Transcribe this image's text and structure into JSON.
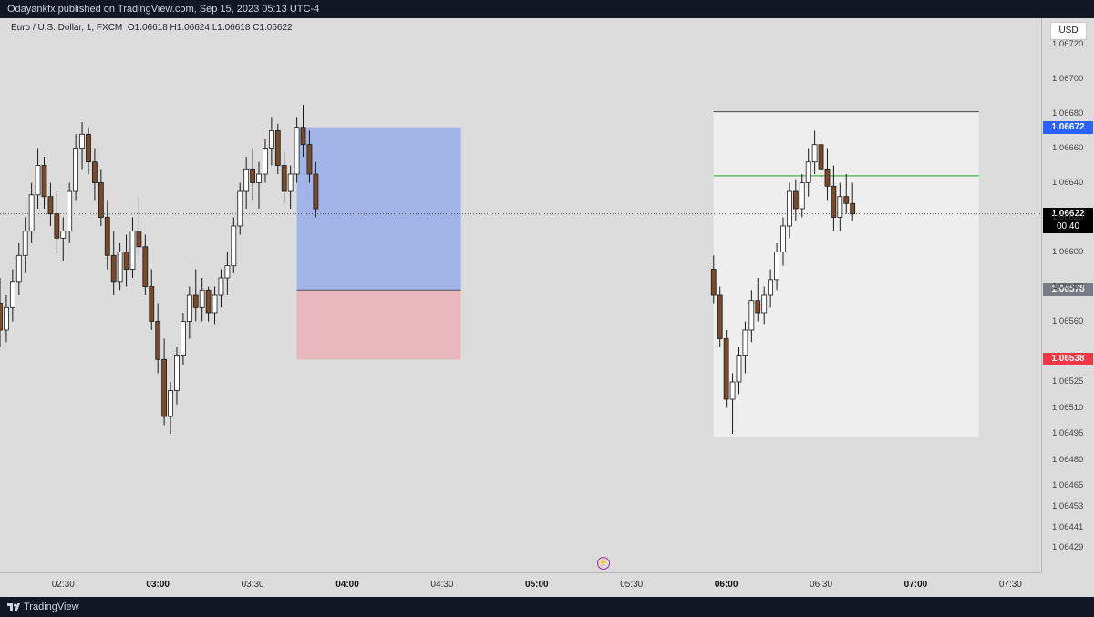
{
  "header": {
    "title": "Odayankfx published on TradingView.com, Sep 15, 2023 05:13 UTC-4"
  },
  "symbol": {
    "name": "Euro / U.S. Dollar, 1, FXCM",
    "open": "O1.06618",
    "high": "H1.06624",
    "low": "L1.06618",
    "close": "C1.06622"
  },
  "axis": {
    "currency": "USD",
    "price_ticks": [
      "1.06720",
      "1.06700",
      "1.06680",
      "1.06660",
      "1.06640",
      "1.06620",
      "1.06600",
      "1.06580",
      "1.06560",
      "1.06525",
      "1.06510",
      "1.06495",
      "1.06480",
      "1.06465",
      "1.06453",
      "1.06441",
      "1.06429"
    ],
    "time_ticks": [
      {
        "label": "02:30",
        "bold": false
      },
      {
        "label": "03:00",
        "bold": true
      },
      {
        "label": "03:30",
        "bold": false
      },
      {
        "label": "04:00",
        "bold": true
      },
      {
        "label": "04:30",
        "bold": false
      },
      {
        "label": "05:00",
        "bold": true
      },
      {
        "label": "05:30",
        "bold": false
      },
      {
        "label": "06:00",
        "bold": true
      },
      {
        "label": "06:30",
        "bold": false
      },
      {
        "label": "07:00",
        "bold": true
      },
      {
        "label": "07:30",
        "bold": false
      }
    ]
  },
  "price_tags": {
    "target": {
      "price": "1.06672",
      "color": "#2962ff"
    },
    "last": {
      "price": "1.06622",
      "countdown": "00:40",
      "color": "#000000"
    },
    "entry": {
      "price": "1.06578",
      "color": "#787b86"
    },
    "stop": {
      "price": "1.06538",
      "color": "#f23645"
    }
  },
  "colors": {
    "bull": "#ffffff",
    "bear": "#7a4a2a",
    "wick": "#1a1a1a",
    "profit_zone": "#8fa6ec",
    "loss_zone": "#eab2b8",
    "result_panel": "#eeeeee",
    "green_line": "#4caf50"
  },
  "footer": {
    "brand": "TradingView",
    "logo_icon": "tradingview-logo-icon"
  },
  "chart_data": {
    "type": "candlestick",
    "title": "Euro / U.S. Dollar, 1, FXCM",
    "xlabel": "",
    "ylabel": "",
    "ylim": [
      1.06415,
      1.06735
    ],
    "x_range": [
      "02:10",
      "07:40"
    ],
    "grid": false,
    "main_series": [
      [
        "02:10",
        1.0657,
        1.06585,
        1.06545,
        1.06555
      ],
      [
        "02:12",
        1.06555,
        1.06575,
        1.06548,
        1.06568
      ],
      [
        "02:14",
        1.06568,
        1.0659,
        1.0656,
        1.06583
      ],
      [
        "02:16",
        1.06583,
        1.06605,
        1.06575,
        1.06598
      ],
      [
        "02:18",
        1.06598,
        1.0662,
        1.06588,
        1.06612
      ],
      [
        "02:20",
        1.06612,
        1.0664,
        1.06605,
        1.06633
      ],
      [
        "02:22",
        1.06633,
        1.0666,
        1.06625,
        1.0665
      ],
      [
        "02:24",
        1.0665,
        1.06655,
        1.06625,
        1.06632
      ],
      [
        "02:26",
        1.06632,
        1.0664,
        1.06615,
        1.06622
      ],
      [
        "02:28",
        1.06622,
        1.06635,
        1.066,
        1.06608
      ],
      [
        "02:30",
        1.06608,
        1.0662,
        1.06595,
        1.06612
      ],
      [
        "02:32",
        1.06612,
        1.0664,
        1.06605,
        1.06635
      ],
      [
        "02:34",
        1.06635,
        1.06668,
        1.0663,
        1.0666
      ],
      [
        "02:36",
        1.0666,
        1.06675,
        1.06648,
        1.06668
      ],
      [
        "02:38",
        1.06668,
        1.06672,
        1.06645,
        1.06652
      ],
      [
        "02:40",
        1.06652,
        1.0666,
        1.0663,
        1.0664
      ],
      [
        "02:42",
        1.0664,
        1.06648,
        1.06615,
        1.0662
      ],
      [
        "02:44",
        1.0662,
        1.0663,
        1.0659,
        1.06598
      ],
      [
        "02:46",
        1.06598,
        1.06612,
        1.06575,
        1.06583
      ],
      [
        "02:48",
        1.06583,
        1.06605,
        1.06578,
        1.066
      ],
      [
        "02:50",
        1.066,
        1.0661,
        1.0658,
        1.0659
      ],
      [
        "02:52",
        1.0659,
        1.0662,
        1.06585,
        1.06612
      ],
      [
        "02:54",
        1.06612,
        1.06632,
        1.06598,
        1.06603
      ],
      [
        "02:56",
        1.06603,
        1.0661,
        1.06575,
        1.0658
      ],
      [
        "02:58",
        1.0658,
        1.0659,
        1.06555,
        1.0656
      ],
      [
        "03:00",
        1.0656,
        1.0657,
        1.0653,
        1.06538
      ],
      [
        "03:02",
        1.06538,
        1.0655,
        1.065,
        1.06505
      ],
      [
        "03:04",
        1.06505,
        1.06525,
        1.06495,
        1.0652
      ],
      [
        "03:06",
        1.0652,
        1.06545,
        1.06512,
        1.0654
      ],
      [
        "03:08",
        1.0654,
        1.06565,
        1.06535,
        1.0656
      ],
      [
        "03:10",
        1.0656,
        1.0658,
        1.0655,
        1.06575
      ],
      [
        "03:12",
        1.06575,
        1.0659,
        1.0656,
        1.06568
      ],
      [
        "03:14",
        1.06568,
        1.06585,
        1.0656,
        1.06578
      ],
      [
        "03:16",
        1.06578,
        1.0658,
        1.0656,
        1.06565
      ],
      [
        "03:18",
        1.06565,
        1.0658,
        1.06558,
        1.06575
      ],
      [
        "03:20",
        1.06575,
        1.0659,
        1.06568,
        1.06585
      ],
      [
        "03:22",
        1.06585,
        1.066,
        1.06575,
        1.06592
      ],
      [
        "03:24",
        1.06592,
        1.0662,
        1.06588,
        1.06615
      ],
      [
        "03:26",
        1.06615,
        1.0664,
        1.0661,
        1.06635
      ],
      [
        "03:28",
        1.06635,
        1.06655,
        1.06625,
        1.06648
      ],
      [
        "03:30",
        1.06648,
        1.0666,
        1.0663,
        1.0664
      ],
      [
        "03:32",
        1.0664,
        1.06652,
        1.06625,
        1.06645
      ],
      [
        "03:34",
        1.06645,
        1.06665,
        1.0664,
        1.0666
      ],
      [
        "03:36",
        1.0666,
        1.06678,
        1.0665,
        1.0667
      ],
      [
        "03:38",
        1.0667,
        1.06674,
        1.06645,
        1.0665
      ],
      [
        "03:40",
        1.0665,
        1.06658,
        1.06628,
        1.06635
      ],
      [
        "03:42",
        1.06635,
        1.0665,
        1.06625,
        1.06645
      ],
      [
        "03:44",
        1.06645,
        1.06678,
        1.0664,
        1.06672
      ],
      [
        "03:46",
        1.06672,
        1.06685,
        1.06655,
        1.06662
      ],
      [
        "03:48",
        1.06662,
        1.0667,
        1.0664,
        1.06645
      ],
      [
        "03:50",
        1.06645,
        1.06652,
        1.0662,
        1.06625
      ]
    ],
    "zoom_series": [
      [
        "05:56",
        1.0659,
        1.06598,
        1.0657,
        1.06575
      ],
      [
        "05:58",
        1.06575,
        1.0658,
        1.06545,
        1.0655
      ],
      [
        "06:00",
        1.0655,
        1.06555,
        1.0651,
        1.06515
      ],
      [
        "06:02",
        1.06515,
        1.0653,
        1.06495,
        1.06525
      ],
      [
        "06:04",
        1.06525,
        1.06545,
        1.06518,
        1.0654
      ],
      [
        "06:06",
        1.0654,
        1.0656,
        1.0653,
        1.06555
      ],
      [
        "06:08",
        1.06555,
        1.06578,
        1.06548,
        1.06572
      ],
      [
        "06:10",
        1.06572,
        1.06585,
        1.0656,
        1.06565
      ],
      [
        "06:12",
        1.06565,
        1.0658,
        1.06558,
        1.06575
      ],
      [
        "06:14",
        1.06575,
        1.0659,
        1.06568,
        1.06584
      ],
      [
        "06:16",
        1.06584,
        1.06605,
        1.06578,
        1.066
      ],
      [
        "06:18",
        1.066,
        1.0662,
        1.06592,
        1.06615
      ],
      [
        "06:20",
        1.06615,
        1.0664,
        1.06608,
        1.06635
      ],
      [
        "06:22",
        1.06635,
        1.06642,
        1.06618,
        1.06625
      ],
      [
        "06:24",
        1.06625,
        1.06645,
        1.0662,
        1.0664
      ],
      [
        "06:26",
        1.0664,
        1.0666,
        1.06632,
        1.06652
      ],
      [
        "06:28",
        1.06652,
        1.0667,
        1.06645,
        1.06662
      ],
      [
        "06:30",
        1.06662,
        1.06668,
        1.0664,
        1.06648
      ],
      [
        "06:32",
        1.06648,
        1.0666,
        1.0663,
        1.06638
      ],
      [
        "06:34",
        1.06638,
        1.0665,
        1.06612,
        1.0662
      ],
      [
        "06:36",
        1.0662,
        1.0664,
        1.06612,
        1.06632
      ],
      [
        "06:38",
        1.06632,
        1.06645,
        1.06622,
        1.06628
      ],
      [
        "06:40",
        1.06628,
        1.0664,
        1.06618,
        1.06622
      ]
    ],
    "position": {
      "direction": "long",
      "entry": 1.06578,
      "target": 1.06672,
      "stop": 1.06538,
      "start": "03:44",
      "end": "04:36"
    },
    "result_panel": {
      "start": "05:56",
      "end": "07:20",
      "top": 1.06681,
      "bottom": 1.06493
    },
    "green_line": 1.06644
  }
}
